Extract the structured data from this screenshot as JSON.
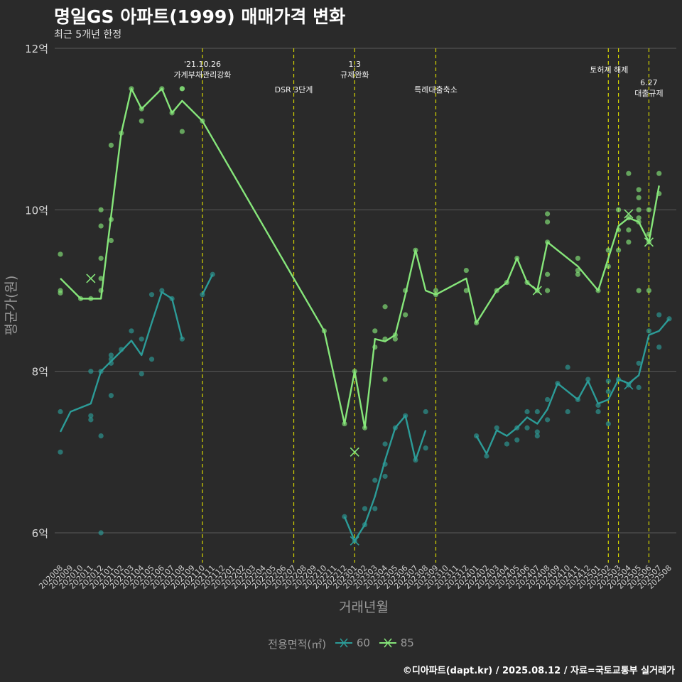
{
  "header": {
    "title": "명일GS 아파트(1999) 매매가격 변화",
    "subtitle": "최근 5개년 한정"
  },
  "footer": "©디아파트(dapt.kr) / 2025.08.12 / 자료=국토교통부 실거래가",
  "legend": {
    "title": "전용면적(㎡)",
    "labels": [
      "60",
      "85"
    ]
  },
  "colors": {
    "series60": "#2c9c98",
    "series85": "#86e67a",
    "event_line": "#d6d600",
    "grid": "#5a5a5a",
    "background": "#2a2a2a"
  },
  "chart_data": {
    "type": "line",
    "xlabel": "거래년월",
    "ylabel": "평균가(원)",
    "ylim": [
      5.65,
      12
    ],
    "y_ticks": [
      6,
      8,
      10,
      12
    ],
    "y_tick_labels": [
      "6억",
      "8억",
      "10억",
      "12억"
    ],
    "categories": [
      "202008",
      "202009",
      "202010",
      "202011",
      "202012",
      "202101",
      "202102",
      "202103",
      "202104",
      "202105",
      "202106",
      "202107",
      "202108",
      "202109",
      "202110",
      "202111",
      "202112",
      "202201",
      "202202",
      "202203",
      "202204",
      "202205",
      "202206",
      "202207",
      "202208",
      "202209",
      "202210",
      "202211",
      "202212",
      "202301",
      "202302",
      "202303",
      "202304",
      "202305",
      "202306",
      "202307",
      "202308",
      "202309",
      "202310",
      "202311",
      "202312",
      "202401",
      "202402",
      "202403",
      "202404",
      "202405",
      "202406",
      "202407",
      "202408",
      "202409",
      "202410",
      "202411",
      "202412",
      "202501",
      "202502",
      "202503",
      "202504",
      "202505",
      "202506",
      "202507",
      "202508"
    ],
    "events": [
      {
        "x": "202110",
        "label": "'21.10.26\n가계부채관리강화"
      },
      {
        "x": "202207",
        "label": "DSR 3단계"
      },
      {
        "x": "202301",
        "label": "1.3\n규제완화"
      },
      {
        "x": "202309",
        "label": "특례대출축소"
      },
      {
        "x": "202502",
        "label": "토허제 해제"
      },
      {
        "x": "202503",
        "label": ""
      },
      {
        "x": "202506",
        "label": "6.27\n대출규제"
      }
    ],
    "series": [
      {
        "name": "60",
        "line": [
          [
            "202008",
            7.25
          ],
          [
            "202009",
            7.5
          ],
          [
            "202011",
            7.6
          ],
          [
            "202012",
            8.0
          ],
          [
            "202102",
            8.25
          ],
          [
            "202103",
            8.38
          ],
          [
            "202104",
            8.2
          ],
          [
            "202105",
            8.6
          ],
          [
            "202106",
            8.98
          ],
          [
            "202107",
            8.9
          ],
          [
            "202108",
            8.4
          ],
          null,
          [
            "202110",
            8.95
          ],
          [
            "202111",
            9.2
          ],
          null,
          [
            "202212",
            6.2
          ],
          [
            "202301",
            5.9
          ],
          [
            "202302",
            6.1
          ],
          [
            "202303",
            6.45
          ],
          [
            "202304",
            6.9
          ],
          [
            "202305",
            7.3
          ],
          [
            "202306",
            7.45
          ],
          [
            "202307",
            6.9
          ],
          [
            "202308",
            7.27
          ],
          null,
          [
            "202401",
            7.2
          ],
          [
            "202402",
            6.98
          ],
          [
            "202403",
            7.27
          ],
          [
            "202404",
            7.2
          ],
          [
            "202405",
            7.3
          ],
          [
            "202406",
            7.43
          ],
          [
            "202407",
            7.35
          ],
          [
            "202408",
            7.53
          ],
          [
            "202409",
            7.85
          ],
          [
            "202410",
            7.75
          ],
          [
            "202411",
            7.65
          ],
          [
            "202412",
            7.88
          ],
          [
            "202501",
            7.6
          ],
          [
            "202502",
            7.65
          ],
          [
            "202503",
            7.9
          ],
          [
            "202504",
            7.85
          ],
          [
            "202505",
            7.95
          ],
          [
            "202506",
            8.45
          ],
          [
            "202507",
            8.5
          ],
          [
            "202508",
            8.65
          ]
        ],
        "points": [
          [
            "202008",
            7.0
          ],
          [
            "202008",
            7.5
          ],
          [
            "202011",
            7.4
          ],
          [
            "202011",
            7.45
          ],
          [
            "202011",
            8.0
          ],
          [
            "202012",
            6.0
          ],
          [
            "202012",
            7.2
          ],
          [
            "202012",
            8.0
          ],
          [
            "202101",
            7.7
          ],
          [
            "202101",
            8.1
          ],
          [
            "202101",
            8.15
          ],
          [
            "202101",
            8.2
          ],
          [
            "202102",
            8.27
          ],
          [
            "202103",
            8.5
          ],
          [
            "202104",
            7.97
          ],
          [
            "202104",
            8.4
          ],
          [
            "202105",
            8.15
          ],
          [
            "202105",
            8.95
          ],
          [
            "202106",
            9.0
          ],
          [
            "202107",
            8.9
          ],
          [
            "202108",
            8.4
          ],
          [
            "202110",
            8.95
          ],
          [
            "202111",
            9.2
          ],
          [
            "202212",
            6.2
          ],
          [
            "202301",
            5.9
          ],
          [
            "202302",
            6.3
          ],
          [
            "202302",
            6.1
          ],
          [
            "202303",
            6.65
          ],
          [
            "202303",
            6.3
          ],
          [
            "202304",
            6.7
          ],
          [
            "202304",
            6.85
          ],
          [
            "202304",
            7.1
          ],
          [
            "202305",
            7.3
          ],
          [
            "202306",
            7.45
          ],
          [
            "202307",
            6.9
          ],
          [
            "202308",
            7.05
          ],
          [
            "202308",
            7.5
          ],
          [
            "202401",
            7.2
          ],
          [
            "202402",
            6.95
          ],
          [
            "202403",
            7.3
          ],
          [
            "202404",
            7.1
          ],
          [
            "202405",
            7.15
          ],
          [
            "202405",
            7.3
          ],
          [
            "202406",
            7.5
          ],
          [
            "202406",
            7.3
          ],
          [
            "202407",
            7.2
          ],
          [
            "202407",
            7.25
          ],
          [
            "202407",
            7.5
          ],
          [
            "202408",
            7.4
          ],
          [
            "202408",
            7.65
          ],
          [
            "202409",
            7.85
          ],
          [
            "202410",
            8.05
          ],
          [
            "202410",
            7.5
          ],
          [
            "202411",
            7.65
          ],
          [
            "202412",
            7.9
          ],
          [
            "202501",
            7.58
          ],
          [
            "202501",
            7.5
          ],
          [
            "202502",
            7.35
          ],
          [
            "202502",
            7.75
          ],
          [
            "202502",
            7.88
          ],
          [
            "202503",
            7.9
          ],
          [
            "202504",
            7.83
          ],
          [
            "202505",
            8.1
          ],
          [
            "202505",
            7.8
          ],
          [
            "202506",
            8.5
          ],
          [
            "202507",
            8.7
          ],
          [
            "202507",
            8.3
          ],
          [
            "202508",
            8.65
          ]
        ],
        "cancelled": [
          [
            "202301",
            5.9
          ],
          [
            "202504",
            7.83
          ]
        ]
      },
      {
        "name": "85",
        "line": [
          [
            "202008",
            9.15
          ],
          [
            "202010",
            8.9
          ],
          [
            "202012",
            8.9
          ],
          [
            "202102",
            10.95
          ],
          [
            "202103",
            11.5
          ],
          [
            "202104",
            11.25
          ],
          [
            "202106",
            11.5
          ],
          [
            "202107",
            11.2
          ],
          [
            "202108",
            11.35
          ],
          [
            "202110",
            11.1
          ],
          [
            "202210",
            8.5
          ],
          [
            "202212",
            7.35
          ],
          [
            "202301",
            8.0
          ],
          [
            "202302",
            7.3
          ],
          [
            "202303",
            8.4
          ],
          [
            "202304",
            8.37
          ],
          [
            "202305",
            8.45
          ],
          [
            "202306",
            8.95
          ],
          [
            "202307",
            9.5
          ],
          [
            "202308",
            9.0
          ],
          [
            "202309",
            8.95
          ],
          [
            "202312",
            9.15
          ],
          [
            "202401",
            8.6
          ],
          [
            "202403",
            9.0
          ],
          [
            "202404",
            9.1
          ],
          [
            "202405",
            9.4
          ],
          [
            "202406",
            9.1
          ],
          [
            "202407",
            9.0
          ],
          [
            "202408",
            9.6
          ],
          [
            "202411",
            9.3
          ],
          [
            "202501",
            9.0
          ],
          [
            "202502",
            9.4
          ],
          [
            "202503",
            9.8
          ],
          [
            "202504",
            9.9
          ],
          [
            "202505",
            9.85
          ],
          [
            "202506",
            9.6
          ],
          [
            "202507",
            10.3
          ]
        ],
        "points": [
          [
            "202008",
            9.45
          ],
          [
            "202008",
            9.0
          ],
          [
            "202008",
            8.97
          ],
          [
            "202010",
            8.9
          ],
          [
            "202011",
            8.9
          ],
          [
            "202012",
            10.0
          ],
          [
            "202012",
            9.8
          ],
          [
            "202012",
            9.4
          ],
          [
            "202012",
            9.15
          ],
          [
            "202012",
            9.0
          ],
          [
            "202101",
            9.88
          ],
          [
            "202101",
            9.62
          ],
          [
            "202101",
            10.8
          ],
          [
            "202102",
            10.95
          ],
          [
            "202103",
            11.5
          ],
          [
            "202104",
            11.25
          ],
          [
            "202104",
            11.1
          ],
          [
            "202106",
            11.5
          ],
          [
            "202107",
            11.2
          ],
          [
            "202108",
            11.5
          ],
          [
            "202108",
            11.5
          ],
          [
            "202108",
            10.97
          ],
          [
            "202110",
            11.1
          ],
          [
            "202210",
            8.5
          ],
          [
            "202212",
            7.35
          ],
          [
            "202301",
            8.0
          ],
          [
            "202302",
            7.3
          ],
          [
            "202303",
            8.5
          ],
          [
            "202303",
            8.3
          ],
          [
            "202304",
            8.4
          ],
          [
            "202304",
            8.8
          ],
          [
            "202304",
            7.9
          ],
          [
            "202305",
            8.45
          ],
          [
            "202305",
            8.4
          ],
          [
            "202306",
            9.0
          ],
          [
            "202306",
            8.7
          ],
          [
            "202307",
            9.5
          ],
          [
            "202309",
            9.0
          ],
          [
            "202309",
            8.95
          ],
          [
            "202312",
            9.25
          ],
          [
            "202312",
            9.0
          ],
          [
            "202401",
            8.6
          ],
          [
            "202403",
            9.0
          ],
          [
            "202404",
            9.1
          ],
          [
            "202405",
            9.4
          ],
          [
            "202406",
            9.1
          ],
          [
            "202407",
            9.0
          ],
          [
            "202408",
            9.95
          ],
          [
            "202408",
            9.85
          ],
          [
            "202408",
            9.6
          ],
          [
            "202408",
            9.2
          ],
          [
            "202408",
            9.0
          ],
          [
            "202411",
            9.25
          ],
          [
            "202411",
            9.2
          ],
          [
            "202411",
            9.4
          ],
          [
            "202501",
            9.0
          ],
          [
            "202502",
            9.5
          ],
          [
            "202502",
            9.3
          ],
          [
            "202503",
            10.0
          ],
          [
            "202503",
            9.75
          ],
          [
            "202503",
            9.5
          ],
          [
            "202504",
            10.45
          ],
          [
            "202504",
            9.9
          ],
          [
            "202504",
            9.75
          ],
          [
            "202504",
            9.6
          ],
          [
            "202505",
            10.25
          ],
          [
            "202505",
            10.15
          ],
          [
            "202505",
            10.0
          ],
          [
            "202505",
            9.9
          ],
          [
            "202505",
            9.85
          ],
          [
            "202505",
            9.0
          ],
          [
            "202506",
            10.0
          ],
          [
            "202506",
            9.7
          ],
          [
            "202506",
            9.6
          ],
          [
            "202506",
            9.0
          ],
          [
            "202507",
            10.45
          ],
          [
            "202507",
            10.2
          ]
        ],
        "cancelled": [
          [
            "202011",
            9.15
          ],
          [
            "202301",
            7.0
          ],
          [
            "202407",
            9.0
          ],
          [
            "202504",
            9.95
          ],
          [
            "202506",
            9.6
          ]
        ]
      }
    ]
  }
}
